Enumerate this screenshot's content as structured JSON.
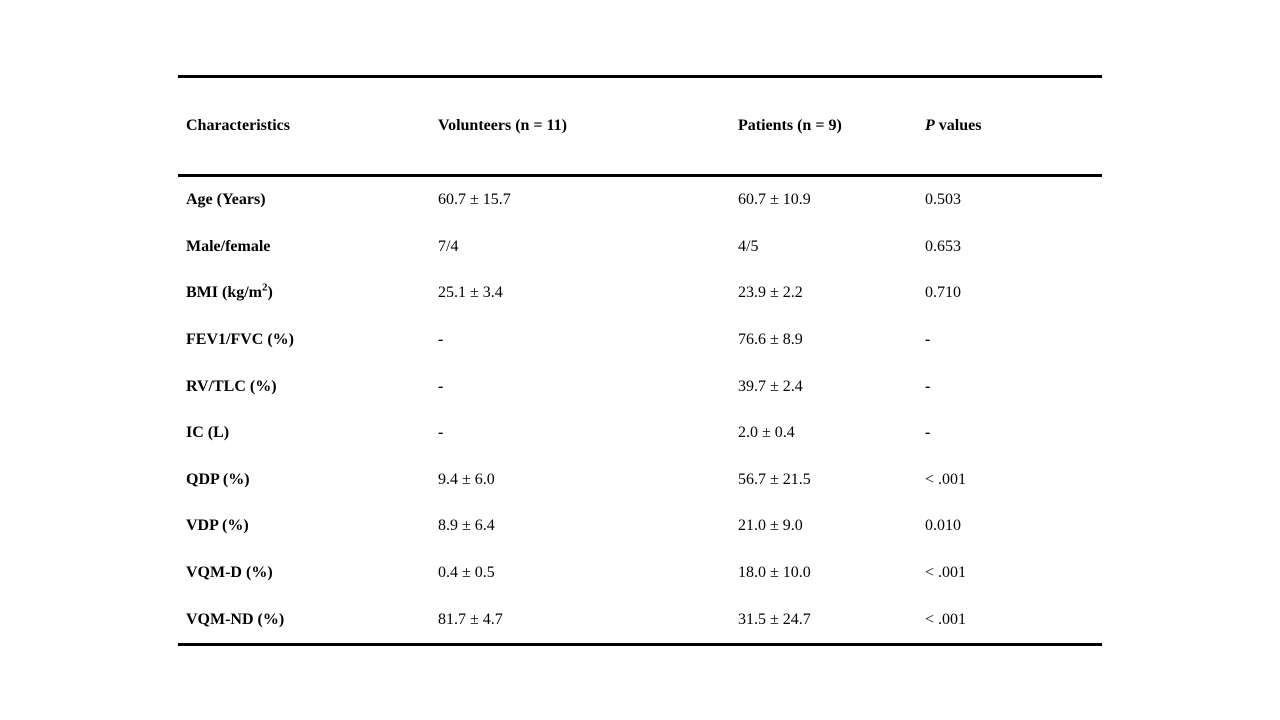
{
  "table": {
    "headers": [
      "Characteristics",
      "Volunteers (n = 11)",
      "Patients (n = 9)"
    ],
    "header_p": {
      "italic": "P",
      "rest": " values"
    },
    "missing_marker": "-",
    "rows": [
      {
        "label": "Age (Years)",
        "volunteers": "60.7 ± 15.7",
        "patients": "60.7 ± 10.9",
        "p": "0.503"
      },
      {
        "label": "Male/female",
        "volunteers": "7/4",
        "patients": "4/5",
        "p": "0.653"
      },
      {
        "label": "BMI (kg/m",
        "label_sup": "2",
        "label_tail": ")",
        "volunteers": "25.1 ± 3.4",
        "patients": "23.9 ± 2.2",
        "p": "0.710"
      },
      {
        "label": "FEV1/FVC (%)",
        "volunteers": "-",
        "patients": "76.6 ± 8.9",
        "p": "-"
      },
      {
        "label": "RV/TLC (%)",
        "volunteers": "-",
        "patients": "39.7 ± 2.4",
        "p": "-"
      },
      {
        "label": "IC (L)",
        "volunteers": "-",
        "patients": "2.0 ± 0.4",
        "p": "-"
      },
      {
        "label": "QDP (%)",
        "volunteers": "9.4 ± 6.0",
        "patients": "56.7 ± 21.5",
        "p": "< .001"
      },
      {
        "label": "VDP (%)",
        "volunteers": "8.9 ± 6.4",
        "patients": "21.0 ± 9.0",
        "p": "0.010"
      },
      {
        "label": "VQM-D (%)",
        "volunteers": "0.4 ± 0.5",
        "patients": "18.0 ± 10.0",
        "p": "< .001"
      },
      {
        "label": "VQM-ND (%)",
        "volunteers": "81.7 ± 4.7",
        "patients": "31.5 ± 24.7",
        "p": "< .001"
      }
    ]
  }
}
